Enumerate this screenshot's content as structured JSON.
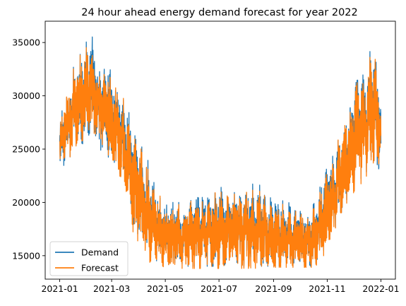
{
  "chart_data": {
    "type": "line",
    "title": "24 hour ahead energy demand forecast for year 2022",
    "xlabel": "",
    "ylabel": "",
    "x_tick_labels": [
      "2021-01",
      "2021-03",
      "2021-05",
      "2021-07",
      "2021-09",
      "2021-11",
      "2022-01"
    ],
    "x_ticks_days": [
      0,
      59,
      120,
      181,
      243,
      304,
      365
    ],
    "y_tick_labels": [
      "15000",
      "20000",
      "25000",
      "30000",
      "35000"
    ],
    "y_ticks": [
      15000,
      20000,
      25000,
      30000,
      35000
    ],
    "xlim_days": [
      -16.5,
      381.5
    ],
    "ylim": [
      12800,
      37000
    ],
    "legend": {
      "position": "lower-left",
      "entries": [
        "Demand",
        "Forecast"
      ]
    },
    "grid": false,
    "series": [
      {
        "name": "Demand",
        "color": "#1f77b4",
        "envelope": [
          {
            "day": 0,
            "low": 23000,
            "high": 28000
          },
          {
            "day": 10,
            "low": 24000,
            "high": 31000
          },
          {
            "day": 20,
            "low": 25500,
            "high": 34000
          },
          {
            "day": 30,
            "low": 25500,
            "high": 35000
          },
          {
            "day": 36,
            "low": 27000,
            "high": 36400
          },
          {
            "day": 45,
            "low": 25000,
            "high": 33000
          },
          {
            "day": 55,
            "low": 24000,
            "high": 34000
          },
          {
            "day": 65,
            "low": 23000,
            "high": 31000
          },
          {
            "day": 75,
            "low": 21000,
            "high": 30000
          },
          {
            "day": 85,
            "low": 17000,
            "high": 27000
          },
          {
            "day": 100,
            "low": 15000,
            "high": 24000
          },
          {
            "day": 110,
            "low": 14500,
            "high": 22000
          },
          {
            "day": 120,
            "low": 14200,
            "high": 20000
          },
          {
            "day": 140,
            "low": 14000,
            "high": 20000
          },
          {
            "day": 160,
            "low": 14000,
            "high": 21000
          },
          {
            "day": 180,
            "low": 14000,
            "high": 21500
          },
          {
            "day": 200,
            "low": 14000,
            "high": 21000
          },
          {
            "day": 220,
            "low": 14000,
            "high": 22000
          },
          {
            "day": 240,
            "low": 14000,
            "high": 21000
          },
          {
            "day": 260,
            "low": 14000,
            "high": 20000
          },
          {
            "day": 280,
            "low": 14000,
            "high": 19000
          },
          {
            "day": 290,
            "low": 14000,
            "high": 20000
          },
          {
            "day": 300,
            "low": 15500,
            "high": 22500
          },
          {
            "day": 310,
            "low": 17000,
            "high": 24500
          },
          {
            "day": 320,
            "low": 19000,
            "high": 27000
          },
          {
            "day": 330,
            "low": 21000,
            "high": 30000
          },
          {
            "day": 340,
            "low": 22000,
            "high": 33500
          },
          {
            "day": 350,
            "low": 23000,
            "high": 34000
          },
          {
            "day": 358,
            "low": 24000,
            "high": 34500
          },
          {
            "day": 365,
            "low": 22000,
            "high": 30000
          }
        ]
      },
      {
        "name": "Forecast",
        "color": "#ff7f0e",
        "envelope": [
          {
            "day": 0,
            "low": 23500,
            "high": 27500
          },
          {
            "day": 10,
            "low": 24000,
            "high": 31300
          },
          {
            "day": 20,
            "low": 25500,
            "high": 33500
          },
          {
            "day": 30,
            "low": 26000,
            "high": 34500
          },
          {
            "day": 36,
            "low": 27000,
            "high": 35000
          },
          {
            "day": 45,
            "low": 25500,
            "high": 32500
          },
          {
            "day": 55,
            "low": 24500,
            "high": 33000
          },
          {
            "day": 65,
            "low": 22500,
            "high": 30500
          },
          {
            "day": 75,
            "low": 20500,
            "high": 29500
          },
          {
            "day": 85,
            "low": 16500,
            "high": 27000
          },
          {
            "day": 100,
            "low": 14500,
            "high": 23500
          },
          {
            "day": 110,
            "low": 14000,
            "high": 21500
          },
          {
            "day": 120,
            "low": 13900,
            "high": 19800
          },
          {
            "day": 140,
            "low": 13800,
            "high": 19800
          },
          {
            "day": 160,
            "low": 13800,
            "high": 20500
          },
          {
            "day": 180,
            "low": 13800,
            "high": 21000
          },
          {
            "day": 200,
            "low": 13800,
            "high": 20800
          },
          {
            "day": 220,
            "low": 13800,
            "high": 21500
          },
          {
            "day": 240,
            "low": 13900,
            "high": 20500
          },
          {
            "day": 260,
            "low": 13900,
            "high": 19500
          },
          {
            "day": 280,
            "low": 13900,
            "high": 18800
          },
          {
            "day": 290,
            "low": 13900,
            "high": 19500
          },
          {
            "day": 300,
            "low": 15000,
            "high": 22000
          },
          {
            "day": 310,
            "low": 16500,
            "high": 24000
          },
          {
            "day": 320,
            "low": 19000,
            "high": 27000
          },
          {
            "day": 330,
            "low": 20500,
            "high": 29500
          },
          {
            "day": 340,
            "low": 21500,
            "high": 33000
          },
          {
            "day": 350,
            "low": 22500,
            "high": 33500
          },
          {
            "day": 358,
            "low": 24000,
            "high": 34700
          },
          {
            "day": 365,
            "low": 22500,
            "high": 29500
          }
        ]
      }
    ]
  }
}
